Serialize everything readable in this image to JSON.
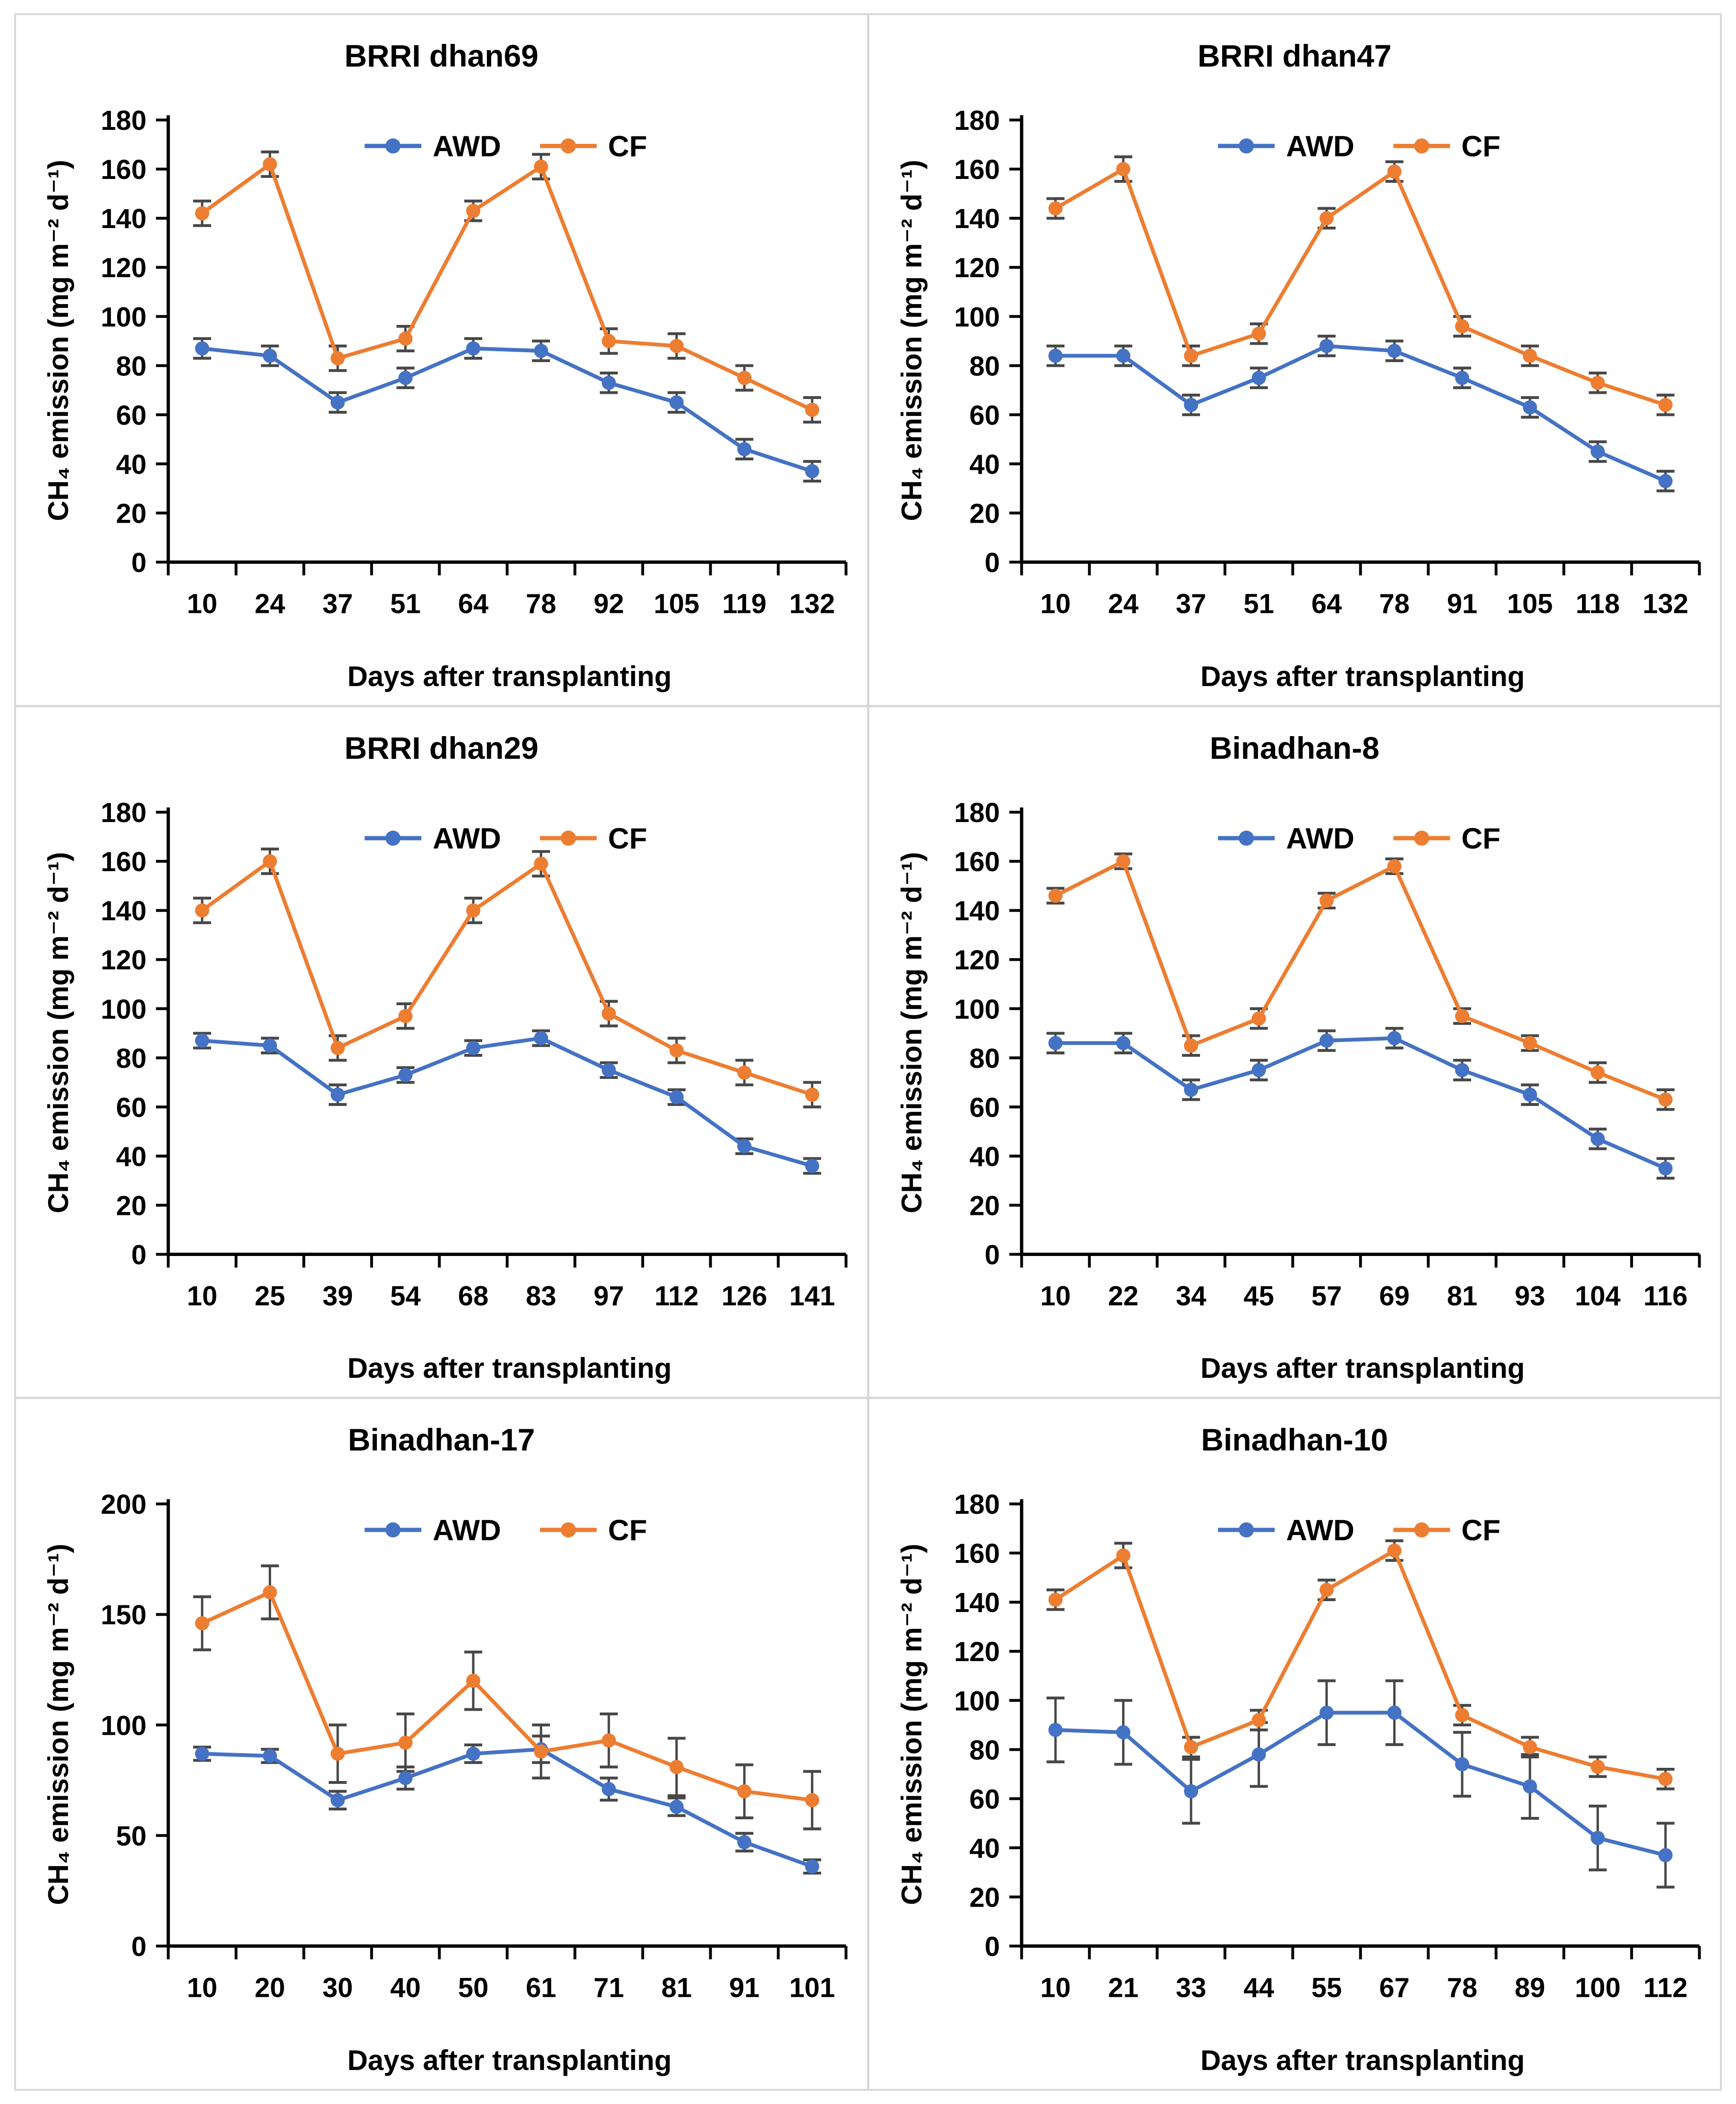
{
  "shared": {
    "x_axis_label": "Days after transplanting",
    "y_axis_label": "CH₄ emission (mg m⁻² d⁻¹)",
    "legend_entries": [
      "AWD",
      "CF"
    ],
    "awd_color": "#4472C4",
    "cf_color": "#ED7D31",
    "error_bar_color": "#474747",
    "axis_color": "#000000",
    "panel_border_color": "#D8D8D8",
    "background_color": "#FFFFFF"
  },
  "chart_data": [
    {
      "type": "line",
      "title": "BRRI dhan69",
      "xlabel": "Days after transplanting",
      "ylabel": "CH₄ emission (mg m⁻² d⁻¹)",
      "x_tick_labels": [
        "10",
        "24",
        "37",
        "51",
        "64",
        "78",
        "92",
        "105",
        "119",
        "132"
      ],
      "ylim": [
        0,
        180
      ],
      "ytick_step": 20,
      "grid": false,
      "legend_position": "top-center-inside",
      "series": [
        {
          "name": "AWD",
          "color": "#4472C4",
          "marker": "circle",
          "values": [
            87,
            84,
            65,
            75,
            87,
            86,
            73,
            65,
            46,
            37
          ],
          "errors": [
            4,
            4,
            4,
            4,
            4,
            4,
            4,
            4,
            4,
            4
          ]
        },
        {
          "name": "CF",
          "color": "#ED7D31",
          "marker": "circle",
          "values": [
            142,
            162,
            83,
            91,
            143,
            161,
            90,
            88,
            75,
            62
          ],
          "errors": [
            5,
            5,
            5,
            5,
            4,
            5,
            5,
            5,
            5,
            5
          ]
        }
      ]
    },
    {
      "type": "line",
      "title": "BRRI dhan47",
      "xlabel": "Days after transplanting",
      "ylabel": "CH₄ emission (mg m⁻² d⁻¹)",
      "x_tick_labels": [
        "10",
        "24",
        "37",
        "51",
        "64",
        "78",
        "91",
        "105",
        "118",
        "132"
      ],
      "ylim": [
        0,
        180
      ],
      "ytick_step": 20,
      "grid": false,
      "legend_position": "top-center-inside",
      "series": [
        {
          "name": "AWD",
          "color": "#4472C4",
          "marker": "circle",
          "values": [
            84,
            84,
            64,
            75,
            88,
            86,
            75,
            63,
            45,
            33
          ],
          "errors": [
            4,
            4,
            4,
            4,
            4,
            4,
            4,
            4,
            4,
            4
          ]
        },
        {
          "name": "CF",
          "color": "#ED7D31",
          "marker": "circle",
          "values": [
            144,
            160,
            84,
            93,
            140,
            159,
            96,
            84,
            73,
            64
          ],
          "errors": [
            4,
            5,
            4,
            4,
            4,
            4,
            4,
            4,
            4,
            4
          ]
        }
      ]
    },
    {
      "type": "line",
      "title": "BRRI dhan29",
      "xlabel": "Days after transplanting",
      "ylabel": "CH₄ emission (mg m⁻² d⁻¹)",
      "x_tick_labels": [
        "10",
        "25",
        "39",
        "54",
        "68",
        "83",
        "97",
        "112",
        "126",
        "141"
      ],
      "ylim": [
        0,
        180
      ],
      "ytick_step": 20,
      "grid": false,
      "legend_position": "top-center-inside",
      "series": [
        {
          "name": "AWD",
          "color": "#4472C4",
          "marker": "circle",
          "values": [
            87,
            85,
            65,
            73,
            84,
            88,
            75,
            64,
            44,
            36
          ],
          "errors": [
            3,
            3,
            4,
            3,
            3,
            3,
            3,
            3,
            3,
            3
          ]
        },
        {
          "name": "CF",
          "color": "#ED7D31",
          "marker": "circle",
          "values": [
            140,
            160,
            84,
            97,
            140,
            159,
            98,
            83,
            74,
            65
          ],
          "errors": [
            5,
            5,
            5,
            5,
            5,
            5,
            5,
            5,
            5,
            5
          ]
        }
      ]
    },
    {
      "type": "line",
      "title": "Binadhan-8",
      "xlabel": "Days after transplanting",
      "ylabel": "CH₄ emission (mg m⁻² d⁻¹)",
      "x_tick_labels": [
        "10",
        "22",
        "34",
        "45",
        "57",
        "69",
        "81",
        "93",
        "104",
        "116"
      ],
      "ylim": [
        0,
        180
      ],
      "ytick_step": 20,
      "grid": false,
      "legend_position": "top-center-inside",
      "series": [
        {
          "name": "AWD",
          "color": "#4472C4",
          "marker": "circle",
          "values": [
            86,
            86,
            67,
            75,
            87,
            88,
            75,
            65,
            47,
            35
          ],
          "errors": [
            4,
            4,
            4,
            4,
            4,
            4,
            4,
            4,
            4,
            4
          ]
        },
        {
          "name": "CF",
          "color": "#ED7D31",
          "marker": "circle",
          "values": [
            146,
            160,
            85,
            96,
            144,
            158,
            97,
            86,
            74,
            63
          ],
          "errors": [
            3,
            3,
            4,
            4,
            3,
            3,
            3,
            3,
            4,
            4
          ]
        }
      ]
    },
    {
      "type": "line",
      "title": "Binadhan-17",
      "xlabel": "Days after transplanting",
      "ylabel": "CH₄ emission (mg m⁻² d⁻¹)",
      "x_tick_labels": [
        "10",
        "20",
        "30",
        "40",
        "50",
        "61",
        "71",
        "81",
        "91",
        "101"
      ],
      "ylim": [
        0,
        200
      ],
      "ytick_step": 50,
      "grid": false,
      "legend_position": "top-center-inside",
      "series": [
        {
          "name": "AWD",
          "color": "#4472C4",
          "marker": "circle",
          "values": [
            87,
            86,
            66,
            76,
            87,
            89,
            71,
            63,
            47,
            36
          ],
          "errors": [
            3,
            3,
            4,
            5,
            4,
            6,
            5,
            4,
            4,
            3
          ]
        },
        {
          "name": "CF",
          "color": "#ED7D31",
          "marker": "circle",
          "values": [
            146,
            160,
            87,
            92,
            120,
            88,
            93,
            81,
            70,
            66
          ],
          "errors": [
            12,
            12,
            13,
            13,
            13,
            12,
            12,
            13,
            12,
            13
          ]
        }
      ]
    },
    {
      "type": "line",
      "title": "Binadhan-10",
      "xlabel": "Days after transplanting",
      "ylabel": "CH₄ emission (mg m⁻² d⁻¹)",
      "x_tick_labels": [
        "10",
        "21",
        "33",
        "44",
        "55",
        "67",
        "78",
        "89",
        "100",
        "112"
      ],
      "ylim": [
        0,
        180
      ],
      "ytick_step": 20,
      "grid": false,
      "legend_position": "top-center-inside",
      "series": [
        {
          "name": "AWD",
          "color": "#4472C4",
          "marker": "circle",
          "values": [
            88,
            87,
            63,
            78,
            95,
            95,
            74,
            65,
            44,
            37
          ],
          "errors": [
            13,
            13,
            13,
            13,
            13,
            13,
            13,
            13,
            13,
            13
          ]
        },
        {
          "name": "CF",
          "color": "#ED7D31",
          "marker": "circle",
          "values": [
            141,
            159,
            81,
            92,
            145,
            161,
            94,
            81,
            73,
            68
          ],
          "errors": [
            4,
            5,
            4,
            4,
            4,
            4,
            4,
            4,
            4,
            4
          ]
        }
      ]
    }
  ]
}
